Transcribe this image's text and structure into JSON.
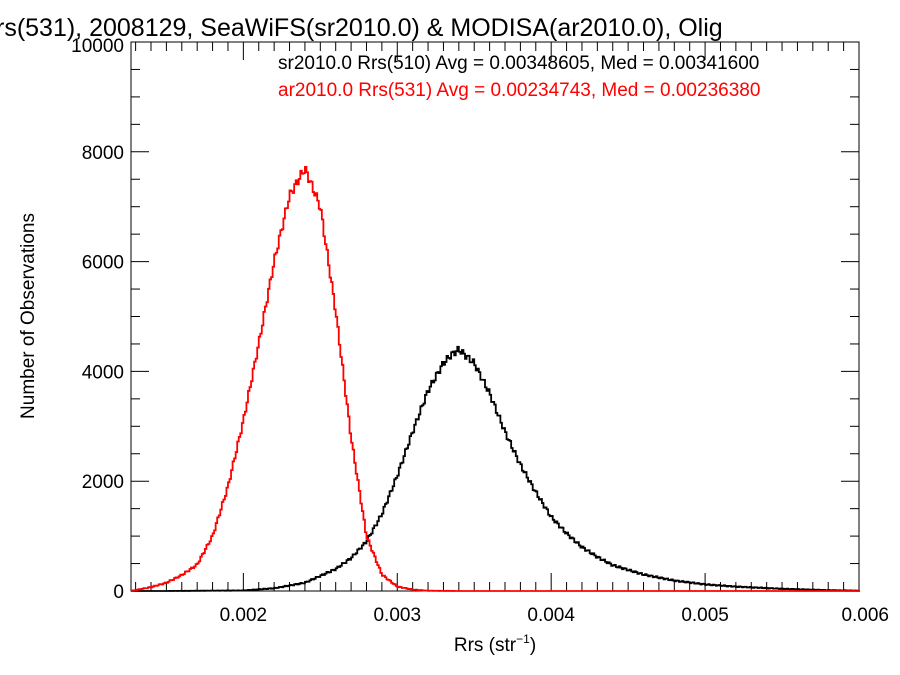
{
  "chart_data": {
    "type": "line",
    "title": "rs(531), 2008129, SeaWiFS(sr2010.0) & MODISA(ar2010.0), Olig",
    "xlabel": "Rrs (str",
    "xlabel_sup": "−1",
    "xlabel_tail": ")",
    "ylabel": "Number of Observations",
    "xlim": [
      0.00127,
      0.006
    ],
    "ylim": [
      0,
      10000
    ],
    "grid": false,
    "x_ticks": [
      0.002,
      0.003,
      0.004,
      0.005,
      0.006
    ],
    "x_tick_labels": [
      "0.002",
      "0.003",
      "0.004",
      "0.005",
      "0.006"
    ],
    "y_ticks": [
      0,
      2000,
      4000,
      6000,
      8000,
      10000
    ],
    "y_tick_labels": [
      "0",
      "2000",
      "4000",
      "6000",
      "8000",
      "10000"
    ],
    "legend": [
      {
        "text": "sr2010.0 Rrs(510) Avg = 0.00348605, Med = 0.00341600",
        "color": "#000000"
      },
      {
        "text": "ar2010.0 Rrs(531) Avg = 0.00234743, Med = 0.00236380",
        "color": "#ff0000"
      }
    ],
    "series": [
      {
        "color": "#000000",
        "x": [
          0.00127,
          0.0015,
          0.002,
          0.0022,
          0.0024,
          0.0026,
          0.0027,
          0.0028,
          0.0029,
          0.003,
          0.0031,
          0.0032,
          0.0033,
          0.00335,
          0.0034,
          0.0035,
          0.0036,
          0.0037,
          0.0038,
          0.0039,
          0.004,
          0.0041,
          0.0042,
          0.0043,
          0.0044,
          0.0046,
          0.0048,
          0.005,
          0.0052,
          0.0055,
          0.0058,
          0.006
        ],
        "y": [
          0,
          0,
          10,
          50,
          150,
          400,
          600,
          900,
          1400,
          2100,
          2900,
          3650,
          4150,
          4300,
          4400,
          4150,
          3600,
          2900,
          2300,
          1800,
          1350,
          1050,
          800,
          620,
          470,
          300,
          190,
          120,
          80,
          40,
          15,
          5
        ]
      },
      {
        "color": "#ff0000",
        "x": [
          0.00127,
          0.0014,
          0.0015,
          0.0016,
          0.0017,
          0.0018,
          0.0019,
          0.002,
          0.0021,
          0.0022,
          0.0023,
          0.0024,
          0.0025,
          0.0026,
          0.0027,
          0.0028,
          0.0029,
          0.003,
          0.0031,
          0.0032,
          0.0034,
          0.004,
          0.006
        ],
        "y": [
          0,
          70,
          150,
          290,
          480,
          1000,
          1900,
          3100,
          4500,
          6000,
          7200,
          7700,
          7000,
          5100,
          2800,
          1000,
          300,
          80,
          25,
          5,
          0,
          0,
          0
        ]
      }
    ]
  }
}
